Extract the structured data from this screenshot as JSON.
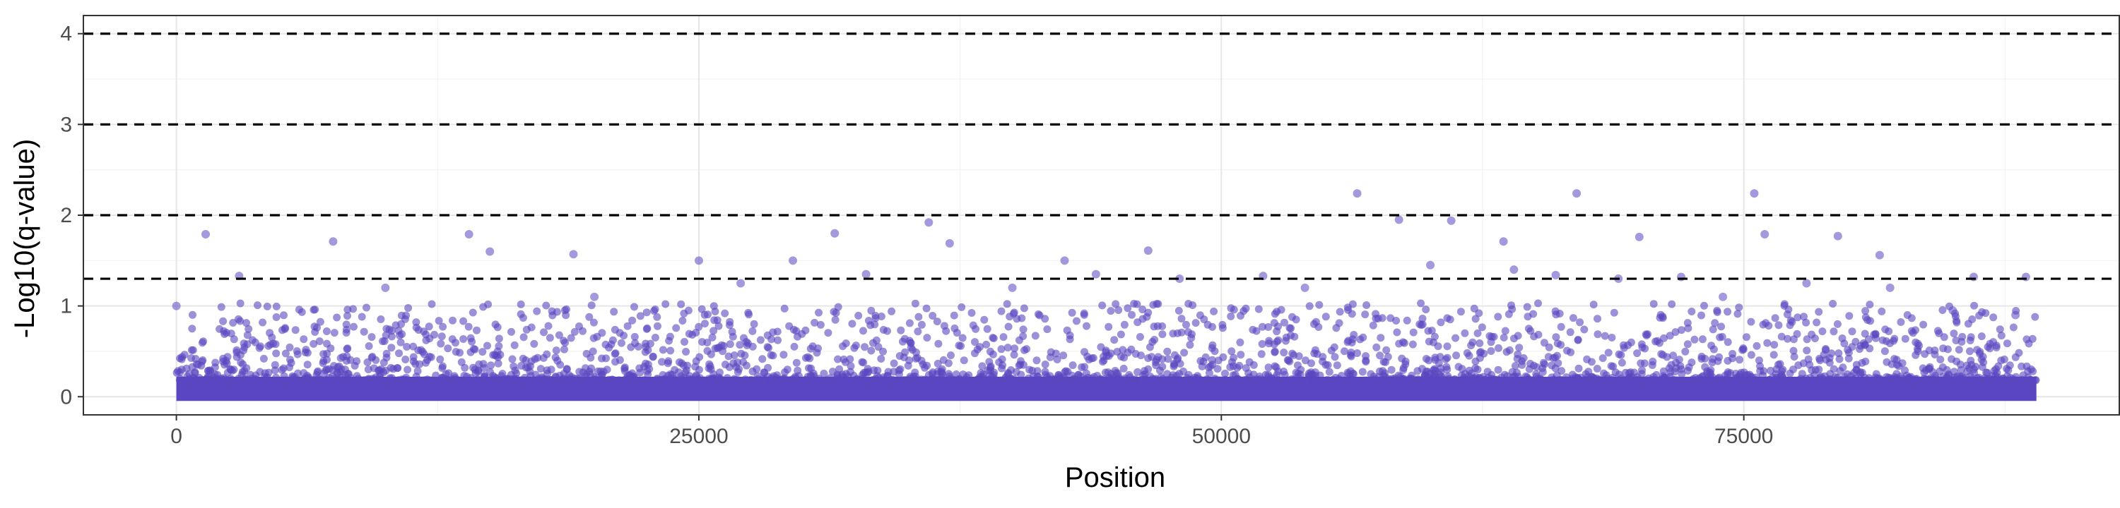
{
  "chart_data": {
    "type": "scatter",
    "title": "",
    "xlabel": "Position",
    "ylabel": "-Log10(q-value)",
    "xlim": [
      -4450,
      93000
    ],
    "ylim": [
      -0.2,
      4.2
    ],
    "x_ticks": [
      0,
      25000,
      50000,
      75000
    ],
    "x_tick_labels": [
      "0",
      "25000",
      "50000",
      "75000"
    ],
    "y_ticks": [
      0,
      1,
      2,
      3,
      4
    ],
    "y_tick_labels": [
      "0",
      "1",
      "2",
      "3",
      "4"
    ],
    "grid": true,
    "legend": "none",
    "point_color": "#5a46c0",
    "point_alpha": 0.55,
    "hlines": [
      1.3,
      2,
      3,
      4
    ],
    "hline_style": "dashed",
    "n_positions_approx": 89000,
    "baseline_band": {
      "x_range": [
        0,
        89000
      ],
      "y_range": [
        0,
        0.45
      ],
      "note": "dense band of points near zero"
    },
    "points": [
      {
        "x": 1400,
        "y": 1.79
      },
      {
        "x": 3000,
        "y": 1.33
      },
      {
        "x": 7500,
        "y": 1.71
      },
      {
        "x": 14000,
        "y": 1.79
      },
      {
        "x": 15000,
        "y": 1.6
      },
      {
        "x": 19000,
        "y": 1.57
      },
      {
        "x": 25000,
        "y": 1.5
      },
      {
        "x": 29500,
        "y": 1.5
      },
      {
        "x": 31500,
        "y": 1.8
      },
      {
        "x": 36000,
        "y": 1.92
      },
      {
        "x": 37000,
        "y": 1.69
      },
      {
        "x": 42500,
        "y": 1.5
      },
      {
        "x": 46500,
        "y": 1.61
      },
      {
        "x": 56500,
        "y": 2.24
      },
      {
        "x": 58500,
        "y": 1.95
      },
      {
        "x": 61000,
        "y": 1.94
      },
      {
        "x": 63500,
        "y": 1.71
      },
      {
        "x": 67000,
        "y": 2.24
      },
      {
        "x": 70000,
        "y": 1.76
      },
      {
        "x": 75500,
        "y": 2.24
      },
      {
        "x": 76000,
        "y": 1.79
      },
      {
        "x": 79500,
        "y": 1.77
      },
      {
        "x": 81500,
        "y": 1.56
      },
      {
        "x": 33000,
        "y": 1.35
      },
      {
        "x": 44000,
        "y": 1.35
      },
      {
        "x": 52000,
        "y": 1.33
      },
      {
        "x": 66000,
        "y": 1.34
      },
      {
        "x": 72000,
        "y": 1.32
      },
      {
        "x": 86000,
        "y": 1.32
      },
      {
        "x": 88500,
        "y": 1.32
      },
      {
        "x": 0,
        "y": 1.0
      },
      {
        "x": 10000,
        "y": 1.2
      },
      {
        "x": 20000,
        "y": 1.1
      },
      {
        "x": 27000,
        "y": 1.25
      },
      {
        "x": 40000,
        "y": 1.2
      },
      {
        "x": 48000,
        "y": 1.3
      },
      {
        "x": 54000,
        "y": 1.2
      },
      {
        "x": 60000,
        "y": 1.45
      },
      {
        "x": 64000,
        "y": 1.4
      },
      {
        "x": 69000,
        "y": 1.3
      },
      {
        "x": 74000,
        "y": 1.1
      },
      {
        "x": 78000,
        "y": 1.25
      },
      {
        "x": 82000,
        "y": 1.2
      },
      {
        "x": 85000,
        "y": 0.95
      },
      {
        "x": 88000,
        "y": 0.9
      }
    ]
  }
}
